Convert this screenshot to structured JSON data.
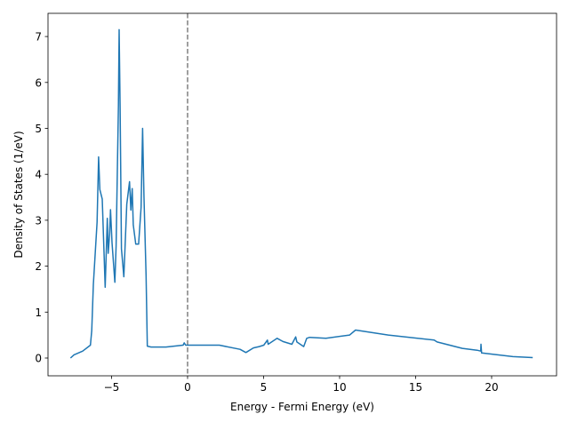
{
  "chart_data": {
    "type": "line",
    "title": "",
    "xlabel": "Energy - Fermi Energy (eV)",
    "ylabel": "Density of States (1/eV)",
    "xlim": [
      -9.18,
      24.27
    ],
    "ylim": [
      -0.387,
      7.505
    ],
    "xticks": [
      -5,
      0,
      5,
      10,
      15,
      20
    ],
    "yticks": [
      0,
      1,
      2,
      3,
      4,
      5,
      6,
      7
    ],
    "grid": false,
    "series": [
      {
        "name": "DOS",
        "color": "#1f77b4",
        "x": [
          -7.7,
          -7.47,
          -6.9,
          -6.39,
          -6.3,
          -6.2,
          -5.95,
          -5.85,
          -5.77,
          -5.61,
          -5.42,
          -5.28,
          -5.22,
          -5.13,
          -5.07,
          -4.97,
          -4.78,
          -4.7,
          -4.55,
          -4.5,
          -4.44,
          -4.35,
          -4.19,
          -4.0,
          -3.82,
          -3.73,
          -3.64,
          -3.57,
          -3.41,
          -3.22,
          -3.06,
          -2.96,
          -2.87,
          -2.73,
          -2.65,
          -2.4,
          -1.42,
          -0.29,
          -0.22,
          -0.13,
          2.09,
          3.45,
          3.84,
          4.33,
          4.71,
          5.01,
          5.25,
          5.3,
          5.89,
          6.27,
          6.86,
          7.11,
          7.19,
          7.64,
          7.84,
          8.03,
          9.1,
          10.66,
          11.05,
          13.2,
          16.22,
          16.41,
          18.07,
          19.05,
          19.28,
          19.3,
          19.34,
          21.39,
          22.7
        ],
        "y": [
          0.0,
          0.07,
          0.15,
          0.28,
          0.6,
          1.6,
          2.96,
          4.38,
          3.67,
          3.46,
          1.54,
          3.04,
          2.28,
          2.7,
          3.23,
          2.51,
          1.65,
          2.44,
          5.5,
          7.15,
          5.47,
          2.38,
          1.77,
          3.35,
          3.84,
          3.22,
          3.69,
          2.9,
          2.48,
          2.48,
          3.28,
          5.0,
          3.54,
          1.8,
          0.26,
          0.24,
          0.24,
          0.28,
          0.33,
          0.28,
          0.28,
          0.19,
          0.12,
          0.22,
          0.25,
          0.28,
          0.39,
          0.3,
          0.43,
          0.36,
          0.3,
          0.46,
          0.35,
          0.25,
          0.43,
          0.45,
          0.43,
          0.5,
          0.61,
          0.5,
          0.39,
          0.35,
          0.21,
          0.17,
          0.15,
          0.3,
          0.11,
          0.03,
          0.01
        ]
      }
    ],
    "reference_line": {
      "x": 0,
      "color": "#808080",
      "style": "dashed"
    }
  }
}
